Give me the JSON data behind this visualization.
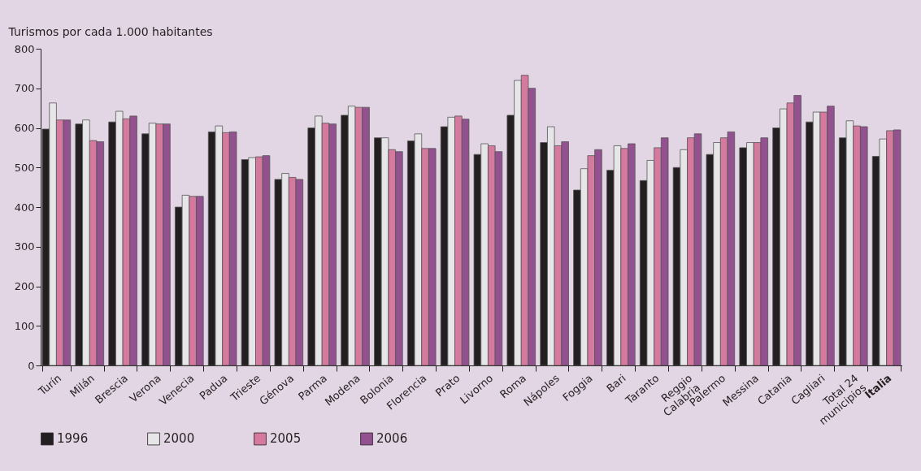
{
  "chart_data": {
    "type": "bar",
    "ylabel": "Turismos por cada 1.000 habitantes",
    "categories": [
      "Turín",
      "Milán",
      "Brescia",
      "Verona",
      "Venecia",
      "Padua",
      "Trieste",
      "Génova",
      "Parma",
      "Modena",
      "Bolonia",
      "Florencia",
      "Prato",
      "Livorno",
      "Roma",
      "Nápoles",
      "Foggia",
      "Bari",
      "Taranto",
      "Reggio Calabria",
      "Palermo",
      "Messina",
      "Catania",
      "Cagliari",
      "Total 24 municipios",
      "Italia"
    ],
    "series": [
      {
        "name": "1996",
        "color": "#231f20",
        "values": [
          597,
          610,
          615,
          585,
          400,
          590,
          520,
          470,
          600,
          632,
          575,
          567,
          603,
          533,
          632,
          563,
          443,
          493,
          467,
          500,
          533,
          550,
          600,
          615,
          575,
          528
        ]
      },
      {
        "name": "2000",
        "color": "#e6e6e8",
        "values": [
          663,
          620,
          642,
          612,
          430,
          605,
          525,
          485,
          630,
          655,
          575,
          585,
          627,
          560,
          720,
          603,
          497,
          555,
          518,
          545,
          563,
          563,
          648,
          640,
          618,
          572
        ]
      },
      {
        "name": "2005",
        "color": "#d6799f",
        "values": [
          620,
          568,
          623,
          610,
          427,
          588,
          527,
          475,
          612,
          652,
          545,
          548,
          630,
          555,
          733,
          555,
          530,
          548,
          550,
          575,
          575,
          563,
          663,
          640,
          605,
          593
        ]
      },
      {
        "name": "2006",
        "color": "#93518f",
        "values": [
          620,
          565,
          630,
          610,
          427,
          590,
          530,
          470,
          610,
          652,
          540,
          548,
          622,
          540,
          700,
          565,
          545,
          560,
          575,
          585,
          590,
          575,
          682,
          655,
          603,
          595
        ]
      }
    ],
    "ylim": [
      0,
      800
    ],
    "yticks": [
      0,
      100,
      200,
      300,
      400,
      500,
      600,
      700,
      800
    ],
    "grid": false,
    "legend": "bottom left"
  }
}
